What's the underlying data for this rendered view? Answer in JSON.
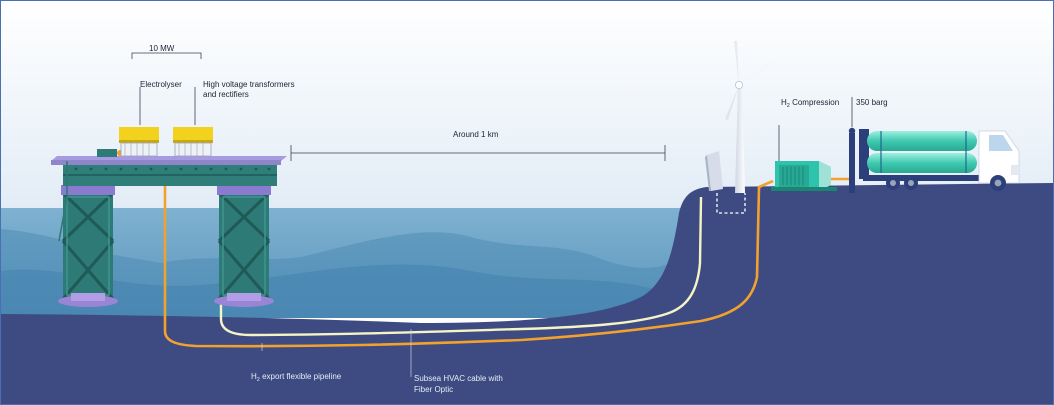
{
  "labels": {
    "power": "10 MW",
    "electrolyser": "Electrolyser",
    "transformers_line1": "High voltage transformers",
    "transformers_line2": "and rectifiers",
    "distance": "Around 1 km",
    "compression_prefix": "H",
    "compression_sub": "2",
    "compression_suffix": " Compression",
    "pressure": "350 barg",
    "pipeline_prefix": "H",
    "pipeline_sub": "2",
    "pipeline_suffix": " export flexible pipeline",
    "cable_line1": "Subsea HVAC cable with",
    "cable_line2": "Fiber Optic"
  },
  "colors": {
    "sky_top": "#ffffff",
    "sky_bottom": "#e4edf6",
    "sea": "#6ea4c6",
    "seabed": "#3d4b82",
    "h2_pipeline": "#f2a12e",
    "hvac_cable": "#f4f1c0",
    "platform_deck": "#8e86c8",
    "platform_frame": "#2e7a76",
    "electrolyser": "#f3d21f",
    "compressor": "#2ec3ad"
  }
}
